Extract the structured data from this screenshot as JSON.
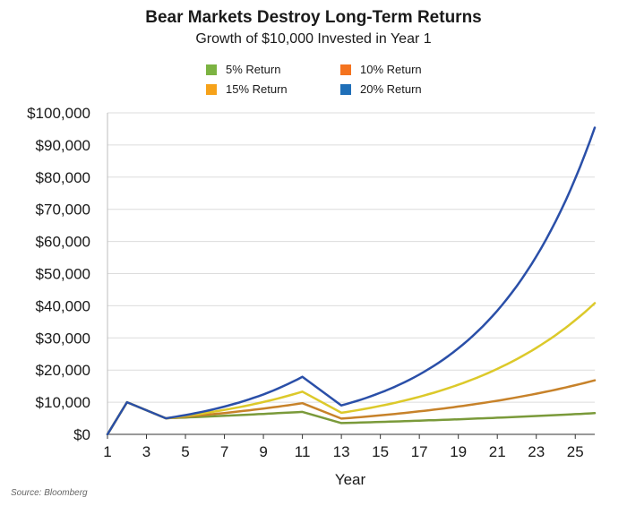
{
  "chart_data": {
    "type": "line",
    "title": "Bear Markets Destroy Long-Term Returns",
    "subtitle": "Growth of $10,000 Invested in Year 1",
    "xlabel": "Year",
    "ylabel": "",
    "xlim": [
      1,
      26
    ],
    "ylim": [
      0,
      100000
    ],
    "x_ticks": [
      1,
      3,
      5,
      7,
      9,
      11,
      13,
      15,
      17,
      19,
      21,
      23,
      25
    ],
    "x_tick_labels": [
      "1",
      "3",
      "5",
      "7",
      "9",
      "11",
      "13",
      "15",
      "17",
      "19",
      "21",
      "23",
      "25"
    ],
    "y_ticks": [
      0,
      10000,
      20000,
      30000,
      40000,
      50000,
      60000,
      70000,
      80000,
      90000,
      100000
    ],
    "y_tick_labels": [
      "$0",
      "$10,000",
      "$20,000",
      "$30,000",
      "$40,000",
      "$50,000",
      "$60,000",
      "$70,000",
      "$80,000",
      "$90,000",
      "$100,000"
    ],
    "grid": "horizontal",
    "legend_position": "top",
    "source": "Source: Bloomberg",
    "x": [
      1,
      2,
      4,
      11,
      13,
      26
    ],
    "series": [
      {
        "name": "5% Return",
        "legend_color": "#7cb342",
        "line_color": "#7a9a3a",
        "points": [
          [
            1,
            0
          ],
          [
            2,
            10000
          ],
          [
            4,
            5000
          ],
          [
            11,
            7000
          ],
          [
            13,
            3500
          ],
          [
            26,
            6600
          ]
        ]
      },
      {
        "name": "10% Return",
        "legend_color": "#f4731f",
        "line_color": "#c7822a",
        "points": [
          [
            1,
            0
          ],
          [
            2,
            10000
          ],
          [
            4,
            5000
          ],
          [
            11,
            9700
          ],
          [
            13,
            4900
          ],
          [
            26,
            16800
          ]
        ]
      },
      {
        "name": "15% Return",
        "legend_color": "#f6a21a",
        "line_color": "#dcc92a",
        "points": [
          [
            1,
            0
          ],
          [
            2,
            10000
          ],
          [
            4,
            5000
          ],
          [
            11,
            13300
          ],
          [
            13,
            6700
          ],
          [
            26,
            40800
          ]
        ]
      },
      {
        "name": "20% Return",
        "legend_color": "#1f6fb8",
        "line_color": "#2a4fa8",
        "points": [
          [
            1,
            0
          ],
          [
            2,
            10000
          ],
          [
            4,
            5000
          ],
          [
            11,
            17900
          ],
          [
            13,
            9000
          ],
          [
            26,
            95400
          ]
        ]
      }
    ]
  }
}
